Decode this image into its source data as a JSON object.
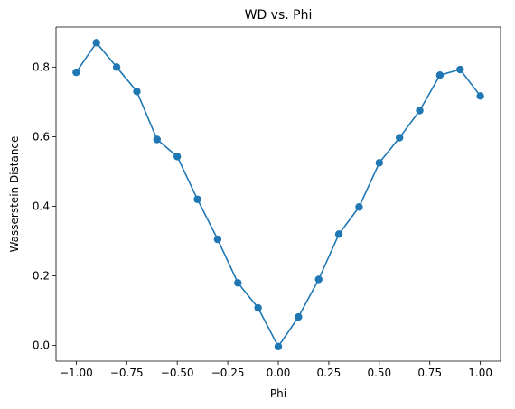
{
  "chart_data": {
    "type": "line",
    "title": "WD vs. Phi",
    "xlabel": "Phi",
    "ylabel": "Wasserstein Distance",
    "xlim": [
      -1.1,
      1.1
    ],
    "ylim": [
      -0.045,
      0.915
    ],
    "xticks": [
      -1.0,
      -0.75,
      -0.5,
      -0.25,
      0.0,
      0.25,
      0.5,
      0.75,
      1.0
    ],
    "xtick_labels": [
      "−1.00",
      "−0.75",
      "−0.50",
      "−0.25",
      "0.00",
      "0.25",
      "0.50",
      "0.75",
      "1.00"
    ],
    "yticks": [
      0.0,
      0.2,
      0.4,
      0.6,
      0.8
    ],
    "ytick_labels": [
      "0.0",
      "0.2",
      "0.4",
      "0.6",
      "0.8"
    ],
    "grid": false,
    "colors": {
      "series": "#1f77b4"
    },
    "series": [
      {
        "x": [
          -1.0,
          -0.9,
          -0.8,
          -0.7,
          -0.6,
          -0.5,
          -0.4,
          -0.3,
          -0.2,
          -0.1,
          0.0,
          0.1,
          0.2,
          0.3,
          0.4,
          0.5,
          0.6,
          0.7,
          0.8,
          0.9,
          1.0
        ],
        "y": [
          0.785,
          0.87,
          0.8,
          0.73,
          0.592,
          0.543,
          0.42,
          0.305,
          0.18,
          0.108,
          -0.003,
          0.082,
          0.19,
          0.32,
          0.398,
          0.525,
          0.597,
          0.675,
          0.777,
          0.793,
          0.717
        ],
        "marker": "circle"
      }
    ]
  }
}
